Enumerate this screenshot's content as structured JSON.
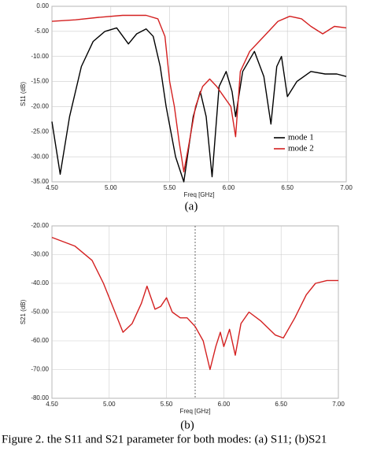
{
  "chart_data": [
    {
      "type": "line",
      "caption": "(a)",
      "x_label": "Freq [GHz]",
      "y_label": "S11 (dB)",
      "grid": true,
      "legend": "lower right",
      "xlim": [
        4.5,
        7.0
      ],
      "xticks": [
        {
          "value": 4.5,
          "label": "4.50"
        },
        {
          "value": 5.0,
          "label": "5.00"
        },
        {
          "value": 5.5,
          "label": "5.50"
        },
        {
          "value": 6.0,
          "label": "6.00"
        },
        {
          "value": 6.5,
          "label": "6.50"
        },
        {
          "value": 7.0,
          "label": "7.00"
        }
      ],
      "ylim": [
        -35,
        0
      ],
      "yticks": [
        {
          "value": 0,
          "label": "0.00"
        },
        {
          "value": -5,
          "label": "-5.00"
        },
        {
          "value": -10,
          "label": "-10.00"
        },
        {
          "value": -15,
          "label": "-15.00"
        },
        {
          "value": -20,
          "label": "-20.00"
        },
        {
          "value": -25,
          "label": "-25.00"
        },
        {
          "value": -30,
          "label": "-30.00"
        },
        {
          "value": -35,
          "label": "-35.00"
        }
      ],
      "series": [
        {
          "name": "mode 1",
          "color": "#000000",
          "x": [
            4.5,
            4.57,
            4.65,
            4.75,
            4.85,
            4.95,
            5.05,
            5.15,
            5.22,
            5.3,
            5.36,
            5.42,
            5.47,
            5.55,
            5.62,
            5.7,
            5.76,
            5.81,
            5.86,
            5.92,
            5.98,
            6.03,
            6.06,
            6.12,
            6.22,
            6.3,
            6.36,
            6.41,
            6.45,
            6.5,
            6.58,
            6.7,
            6.82,
            6.92,
            7.0
          ],
          "values": [
            -23,
            -33.5,
            -22,
            -12,
            -7,
            -5,
            -4.3,
            -7.5,
            -5.5,
            -4.5,
            -6,
            -12,
            -20,
            -30,
            -35,
            -22,
            -17,
            -22,
            -34,
            -16,
            -13,
            -17,
            -22,
            -13,
            -9,
            -14,
            -23.5,
            -12,
            -10,
            -18,
            -15,
            -13,
            -13.5,
            -13.5,
            -14
          ]
        },
        {
          "name": "mode 2",
          "color": "#d42020",
          "x": [
            4.5,
            4.7,
            4.9,
            5.1,
            5.3,
            5.4,
            5.46,
            5.5,
            5.54,
            5.58,
            5.62,
            5.66,
            5.72,
            5.78,
            5.84,
            5.9,
            5.96,
            6.02,
            6.06,
            6.1,
            6.18,
            6.26,
            6.34,
            6.42,
            6.52,
            6.62,
            6.7,
            6.8,
            6.9,
            7.0
          ],
          "values": [
            -3,
            -2.7,
            -2.2,
            -1.8,
            -1.8,
            -2.5,
            -6,
            -15,
            -20,
            -27,
            -33,
            -28,
            -20,
            -16,
            -14.5,
            -16,
            -18,
            -20,
            -26,
            -13,
            -9,
            -7,
            -5,
            -3,
            -2,
            -2.5,
            -4,
            -5.5,
            -4,
            -4.3
          ]
        }
      ]
    },
    {
      "type": "line",
      "caption": "(b)",
      "x_label": "Freq [GHz]",
      "y_label": "S21 (dB)",
      "grid": true,
      "marker_x": 5.75,
      "xlim": [
        4.5,
        7.0
      ],
      "xticks": [
        {
          "value": 4.5,
          "label": "4.50"
        },
        {
          "value": 5.0,
          "label": "5.00"
        },
        {
          "value": 5.5,
          "label": "5.50"
        },
        {
          "value": 6.0,
          "label": "6.00"
        },
        {
          "value": 6.5,
          "label": "6.50"
        },
        {
          "value": 7.0,
          "label": "7.00"
        }
      ],
      "ylim": [
        -80,
        -20
      ],
      "yticks": [
        {
          "value": -20,
          "label": "-20.00"
        },
        {
          "value": -30,
          "label": "-30.00"
        },
        {
          "value": -40,
          "label": "-40.00"
        },
        {
          "value": -50,
          "label": "-50.00"
        },
        {
          "value": -60,
          "label": "-60.00"
        },
        {
          "value": -70,
          "label": "-70.00"
        },
        {
          "value": -80,
          "label": "-80.00"
        }
      ],
      "series": [
        {
          "color": "#d42020",
          "x": [
            4.5,
            4.7,
            4.85,
            4.95,
            5.05,
            5.12,
            5.2,
            5.28,
            5.33,
            5.4,
            5.45,
            5.5,
            5.55,
            5.62,
            5.68,
            5.75,
            5.82,
            5.88,
            5.93,
            5.97,
            6.0,
            6.05,
            6.1,
            6.15,
            6.22,
            6.32,
            6.45,
            6.52,
            6.62,
            6.72,
            6.8,
            6.9,
            7.0
          ],
          "values": [
            -24,
            -27,
            -32,
            -40,
            -50,
            -57,
            -54,
            -47,
            -41,
            -49,
            -48,
            -45,
            -50,
            -52,
            -52,
            -55,
            -60,
            -70,
            -62,
            -57,
            -62,
            -56,
            -65,
            -54,
            -50,
            -53,
            -58,
            -59,
            -52,
            -44,
            -40,
            -39,
            -39
          ]
        }
      ]
    }
  ],
  "caption": "Figure 2. the S11 and S21 parameter for both modes: (a) S11; (b)S21"
}
